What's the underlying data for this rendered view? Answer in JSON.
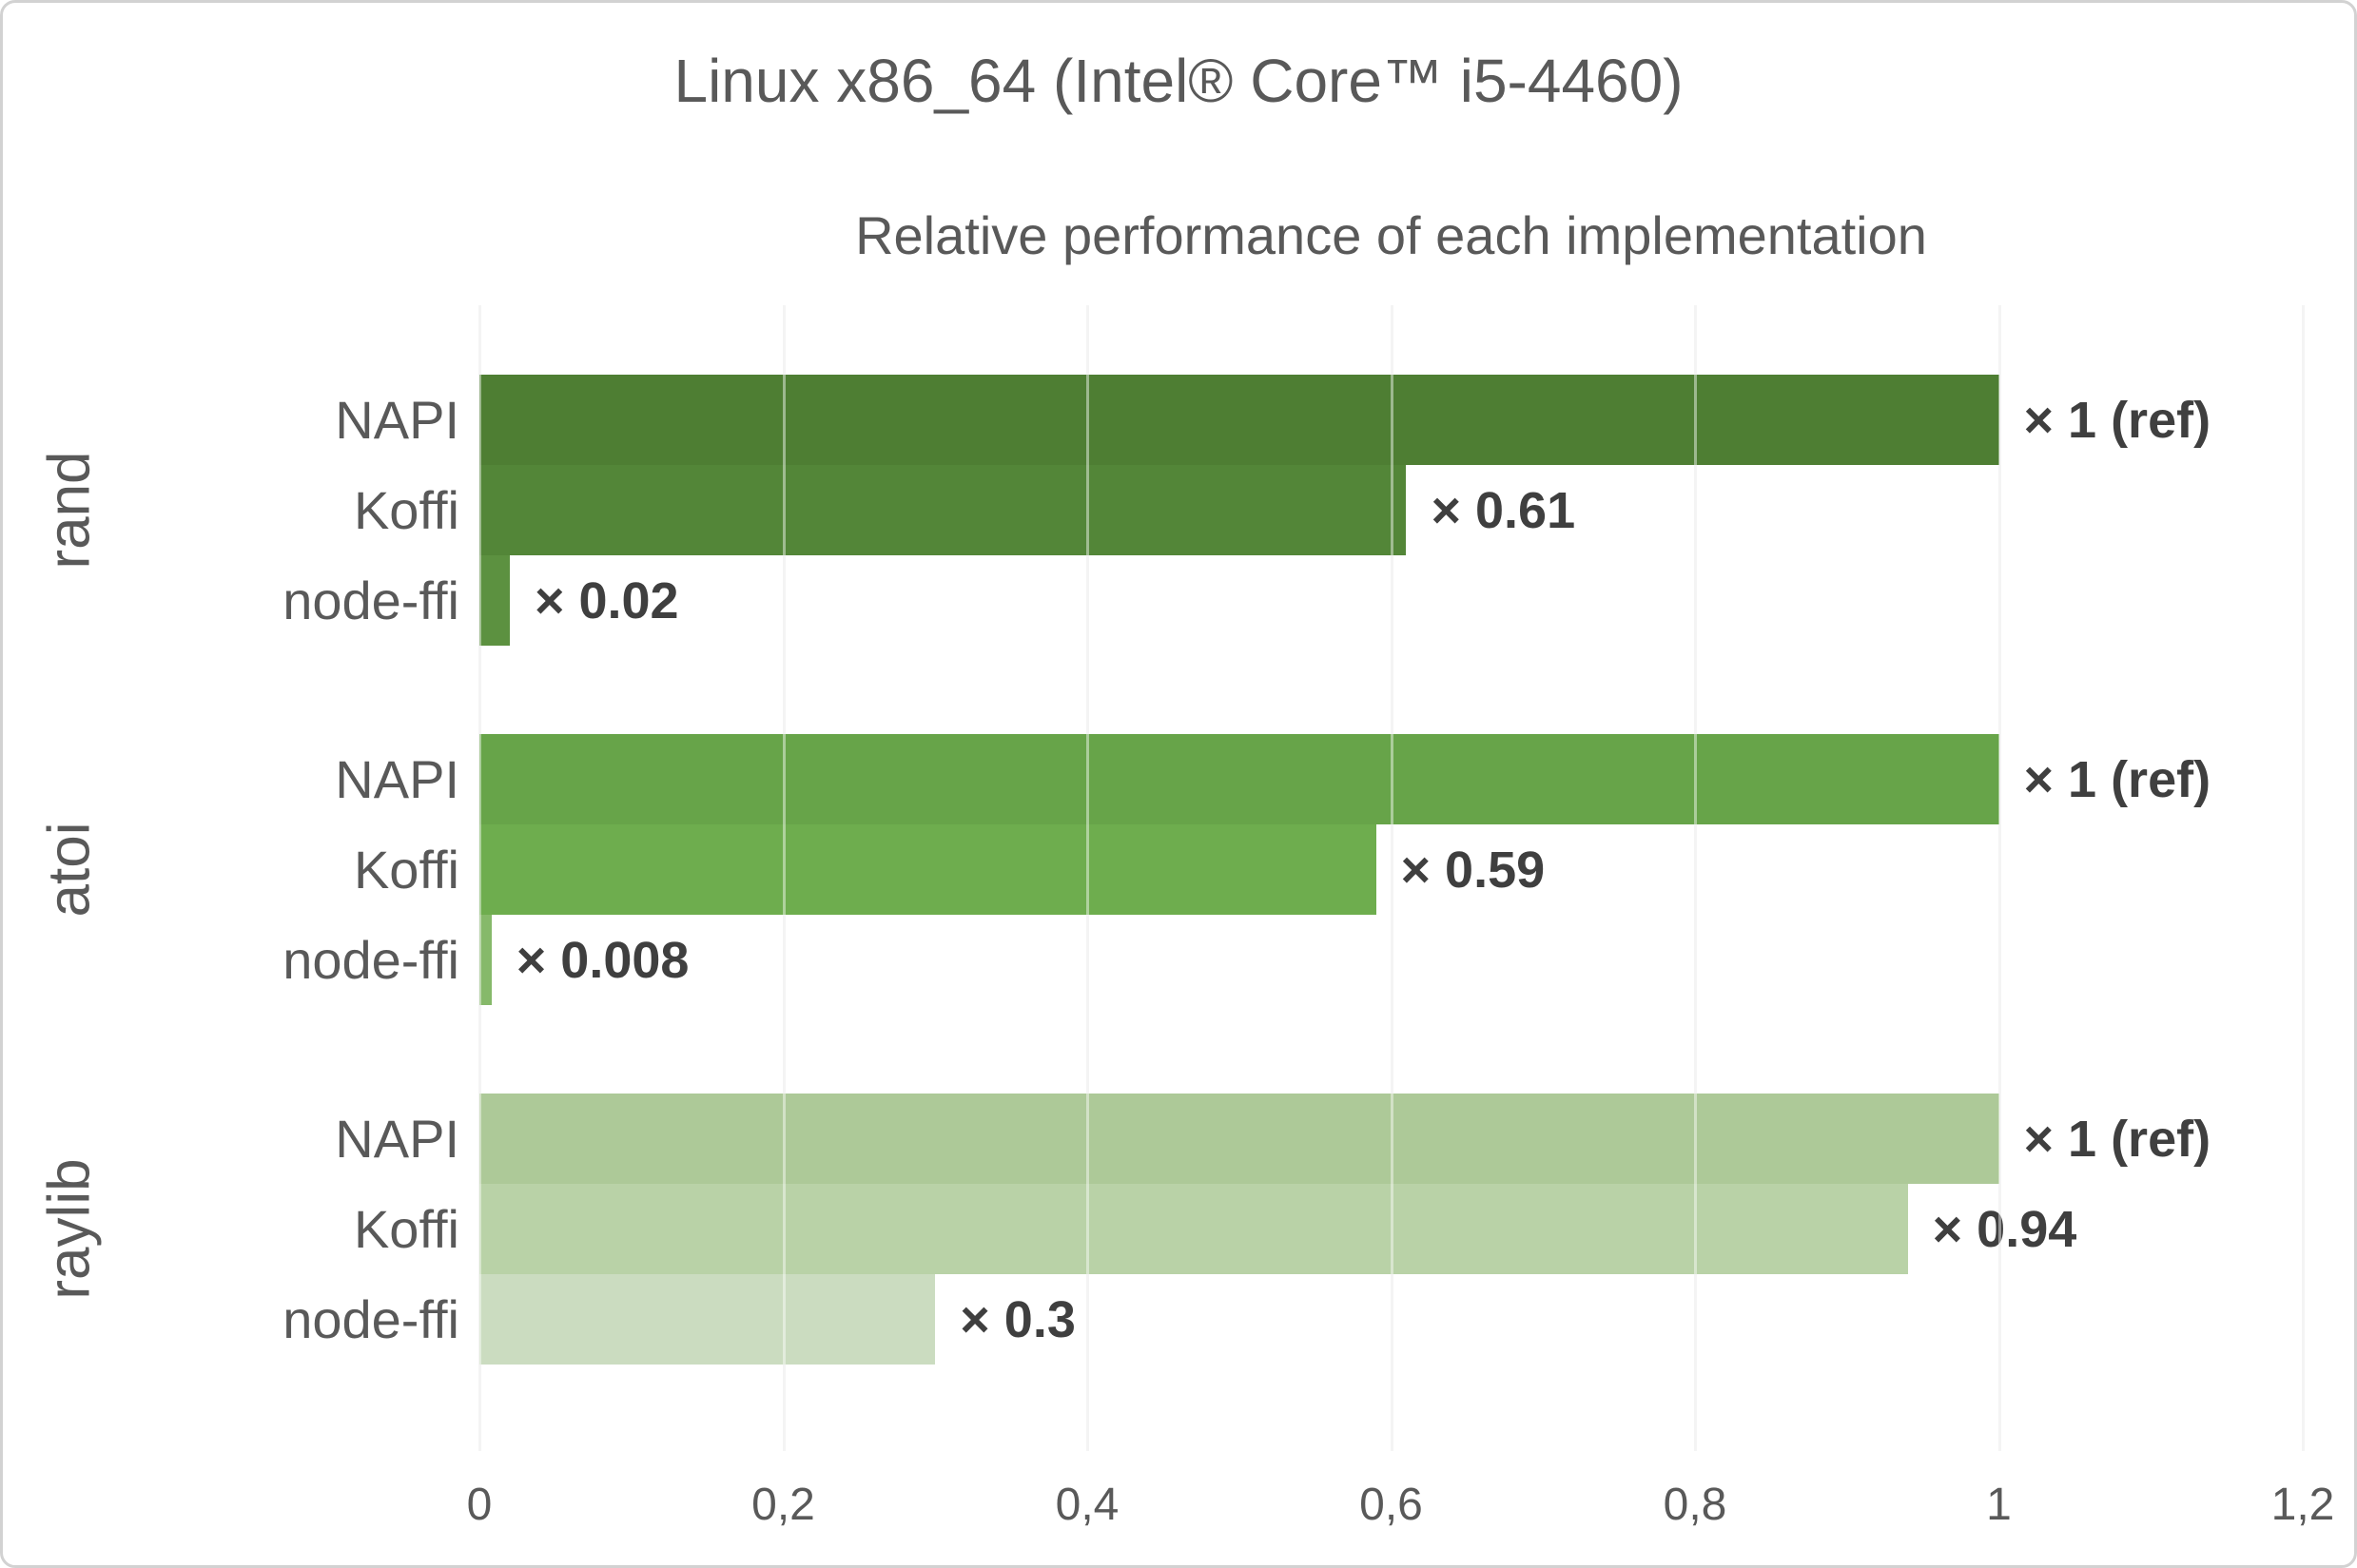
{
  "chart_data": {
    "type": "bar",
    "orientation": "horizontal",
    "title": "Linux x86_64 (Intel® Core™ i5-4460)",
    "subtitle": "Relative performance of each implementation",
    "xlim": [
      0,
      1.2
    ],
    "grid": "vertical",
    "legend": "none",
    "decimal_separator_axis": ",",
    "text_color": "#595959",
    "annotation_color": "#3f3f3f",
    "gridline_color": "#ebebeb",
    "x_ticks": [
      {
        "value": 0,
        "label": "0"
      },
      {
        "value": 0.2,
        "label": "0,2"
      },
      {
        "value": 0.4,
        "label": "0,4"
      },
      {
        "value": 0.6,
        "label": "0,6"
      },
      {
        "value": 0.8,
        "label": "0,8"
      },
      {
        "value": 1,
        "label": "1"
      },
      {
        "value": 1.2,
        "label": "1,2"
      }
    ],
    "groups": [
      {
        "name": "rand",
        "bars": [
          {
            "label": "NAPI",
            "value": 1,
            "annotation": "× 1 (ref)",
            "color": "#4e7e33"
          },
          {
            "label": "Koffi",
            "value": 0.61,
            "annotation": "× 0.61",
            "color": "#538638"
          },
          {
            "label": "node-ffi",
            "value": 0.02,
            "annotation": "× 0.02",
            "color": "#5c9140"
          }
        ]
      },
      {
        "name": "atoi",
        "bars": [
          {
            "label": "NAPI",
            "value": 1,
            "annotation": "× 1 (ref)",
            "color": "#67a449"
          },
          {
            "label": "Koffi",
            "value": 0.59,
            "annotation": "× 0.59",
            "color": "#6ead4e"
          },
          {
            "label": "node-ffi",
            "value": 0.008,
            "annotation": "× 0.008",
            "color": "#86b96a"
          }
        ]
      },
      {
        "name": "raylib",
        "bars": [
          {
            "label": "NAPI",
            "value": 1,
            "annotation": "× 1 (ref)",
            "color": "#adc998"
          },
          {
            "label": "Koffi",
            "value": 0.94,
            "annotation": "× 0.94",
            "color": "#b9d2a7"
          },
          {
            "label": "node-ffi",
            "value": 0.3,
            "annotation": "× 0.3",
            "color": "#cbdcc0"
          }
        ]
      }
    ]
  }
}
